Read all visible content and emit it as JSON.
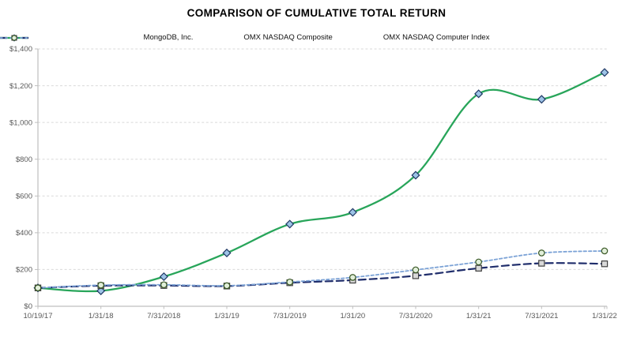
{
  "chart_data": {
    "type": "line",
    "title": "COMPARISON OF CUMULATIVE TOTAL RETURN",
    "categories": [
      "10/19/17",
      "1/31/18",
      "7/31/2018",
      "1/31/19",
      "7/31/2019",
      "1/31/20",
      "7/31/2020",
      "1/31/21",
      "7/31/2021",
      "1/31/22"
    ],
    "series": [
      {
        "name": "MongoDB, Inc.",
        "values": [
          100,
          84,
          161,
          290,
          447,
          511,
          713,
          1156,
          1126,
          1272
        ],
        "color": "#28A55A",
        "dash": "solid",
        "line_width": 2.3,
        "marker": "diamond",
        "marker_fill": "#9DC3E6",
        "marker_stroke": "#1F3864"
      },
      {
        "name": "OMX NASDAQ Composite",
        "values": [
          100,
          112,
          113,
          110,
          128,
          142,
          166,
          207,
          234,
          231
        ],
        "color": "#1F2D6B",
        "dash": "long",
        "line_width": 2.2,
        "marker": "square",
        "marker_fill": "#D9D9D9",
        "marker_stroke": "#404040"
      },
      {
        "name": "OMX NASDAQ Computer Index",
        "values": [
          100,
          115,
          117,
          112,
          132,
          157,
          198,
          241,
          290,
          301
        ],
        "color": "#7BA2D6",
        "dash": "short",
        "line_width": 1.8,
        "marker": "circle",
        "marker_fill": "#E2EFDA",
        "marker_stroke": "#375623"
      }
    ],
    "y_ticks": [
      "$0",
      "$200",
      "$400",
      "$600",
      "$800",
      "$1,000",
      "$1,200",
      "$1,400"
    ],
    "y_tick_values": [
      0,
      200,
      400,
      600,
      800,
      1000,
      1200,
      1400
    ],
    "ylim": [
      0,
      1400
    ],
    "grid": "horizontal-dashed",
    "legend_position": "top",
    "colors": {
      "axis": "#BFBFBF",
      "gridline": "#D9D9D9",
      "tick_label": "#595959",
      "background": "#FFFFFF"
    }
  }
}
